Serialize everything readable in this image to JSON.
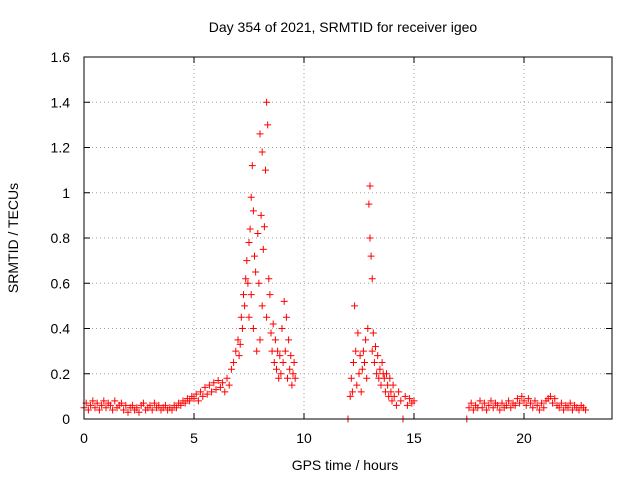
{
  "chart_data": {
    "type": "scatter",
    "title": "Day 354 of 2021, SRMTID for receiver igeo",
    "xlabel": "GPS time / hours",
    "ylabel": "SRMTID / TECUs",
    "xlim": [
      0,
      24
    ],
    "ylim": [
      0,
      1.6
    ],
    "x_ticks": [
      0,
      5,
      10,
      15,
      20
    ],
    "x_tick_labels": [
      "0",
      "5",
      "10",
      "15",
      "20"
    ],
    "y_ticks": [
      0,
      0.2,
      0.4,
      0.6,
      0.8,
      1.0,
      1.2,
      1.4,
      1.6
    ],
    "y_tick_labels": [
      "0",
      "0.2",
      "0.4",
      "0.6",
      "0.8",
      "1",
      "1.2",
      "1.4",
      "1.6"
    ],
    "grid": true,
    "marker": "plus",
    "series": [
      {
        "name": "SRMTID",
        "color": "#ff0000",
        "points": [
          [
            0.0,
            0.05
          ],
          [
            0.1,
            0.07
          ],
          [
            0.2,
            0.04
          ],
          [
            0.3,
            0.06
          ],
          [
            0.4,
            0.08
          ],
          [
            0.5,
            0.05
          ],
          [
            0.6,
            0.07
          ],
          [
            0.7,
            0.04
          ],
          [
            0.8,
            0.06
          ],
          [
            0.9,
            0.08
          ],
          [
            1.0,
            0.05
          ],
          [
            1.1,
            0.07
          ],
          [
            1.2,
            0.06
          ],
          [
            1.3,
            0.04
          ],
          [
            1.4,
            0.08
          ],
          [
            1.5,
            0.05
          ],
          [
            1.6,
            0.06
          ],
          [
            1.7,
            0.07
          ],
          [
            1.8,
            0.04
          ],
          [
            1.9,
            0.06
          ],
          [
            2.0,
            0.03
          ],
          [
            2.1,
            0.05
          ],
          [
            2.2,
            0.06
          ],
          [
            2.3,
            0.04
          ],
          [
            2.4,
            0.05
          ],
          [
            2.5,
            0.03
          ],
          [
            2.6,
            0.06
          ],
          [
            2.7,
            0.07
          ],
          [
            2.8,
            0.04
          ],
          [
            2.9,
            0.05
          ],
          [
            3.0,
            0.06
          ],
          [
            3.1,
            0.04
          ],
          [
            3.2,
            0.07
          ],
          [
            3.3,
            0.05
          ],
          [
            3.4,
            0.06
          ],
          [
            3.5,
            0.04
          ],
          [
            3.6,
            0.05
          ],
          [
            3.7,
            0.06
          ],
          [
            3.8,
            0.04
          ],
          [
            3.9,
            0.05
          ],
          [
            4.0,
            0.04
          ],
          [
            4.1,
            0.06
          ],
          [
            4.2,
            0.05
          ],
          [
            4.3,
            0.07
          ],
          [
            4.4,
            0.06
          ],
          [
            4.5,
            0.08
          ],
          [
            4.6,
            0.07
          ],
          [
            4.7,
            0.09
          ],
          [
            4.8,
            0.08
          ],
          [
            4.9,
            0.1
          ],
          [
            5.0,
            0.09
          ],
          [
            5.1,
            0.11
          ],
          [
            5.2,
            0.08
          ],
          [
            5.3,
            0.12
          ],
          [
            5.4,
            0.1
          ],
          [
            5.5,
            0.14
          ],
          [
            5.6,
            0.11
          ],
          [
            5.7,
            0.15
          ],
          [
            5.8,
            0.12
          ],
          [
            5.9,
            0.16
          ],
          [
            6.0,
            0.13
          ],
          [
            6.1,
            0.17
          ],
          [
            6.2,
            0.14
          ],
          [
            6.3,
            0.16
          ],
          [
            6.4,
            0.12
          ],
          [
            6.5,
            0.18
          ],
          [
            6.6,
            0.15
          ],
          [
            6.7,
            0.22
          ],
          [
            6.8,
            0.25
          ],
          [
            6.9,
            0.3
          ],
          [
            7.0,
            0.35
          ],
          [
            7.05,
            0.28
          ],
          [
            7.1,
            0.33
          ],
          [
            7.15,
            0.45
          ],
          [
            7.2,
            0.4
          ],
          [
            7.25,
            0.55
          ],
          [
            7.3,
            0.5
          ],
          [
            7.35,
            0.62
          ],
          [
            7.4,
            0.7
          ],
          [
            7.45,
            0.6
          ],
          [
            7.5,
            0.78
          ],
          [
            7.5,
            0.45
          ],
          [
            7.55,
            0.84
          ],
          [
            7.6,
            0.98
          ],
          [
            7.6,
            0.55
          ],
          [
            7.65,
            1.12
          ],
          [
            7.7,
            0.92
          ],
          [
            7.7,
            0.4
          ],
          [
            7.75,
            0.72
          ],
          [
            7.8,
            0.65
          ],
          [
            7.85,
            0.3
          ],
          [
            7.9,
            0.82
          ],
          [
            7.95,
            0.6
          ],
          [
            8.0,
            1.26
          ],
          [
            8.0,
            0.35
          ],
          [
            8.05,
            0.9
          ],
          [
            8.1,
            1.18
          ],
          [
            8.1,
            0.5
          ],
          [
            8.15,
            0.75
          ],
          [
            8.2,
            0.85
          ],
          [
            8.25,
            1.1
          ],
          [
            8.3,
            1.4
          ],
          [
            8.3,
            0.45
          ],
          [
            8.35,
            1.3
          ],
          [
            8.4,
            0.62
          ],
          [
            8.45,
            0.55
          ],
          [
            8.5,
            0.38
          ],
          [
            8.55,
            0.3
          ],
          [
            8.6,
            0.42
          ],
          [
            8.65,
            0.25
          ],
          [
            8.7,
            0.35
          ],
          [
            8.75,
            0.22
          ],
          [
            8.8,
            0.3
          ],
          [
            8.85,
            0.18
          ],
          [
            8.9,
            0.28
          ],
          [
            8.95,
            0.2
          ],
          [
            9.0,
            0.4
          ],
          [
            9.05,
            0.25
          ],
          [
            9.1,
            0.52
          ],
          [
            9.15,
            0.3
          ],
          [
            9.2,
            0.45
          ],
          [
            9.25,
            0.18
          ],
          [
            9.3,
            0.35
          ],
          [
            9.35,
            0.22
          ],
          [
            9.4,
            0.28
          ],
          [
            9.45,
            0.15
          ],
          [
            9.5,
            0.2
          ],
          [
            9.55,
            0.25
          ],
          [
            9.6,
            0.18
          ],
          [
            12.0,
            0.0
          ],
          [
            12.1,
            0.1
          ],
          [
            12.15,
            0.18
          ],
          [
            12.2,
            0.12
          ],
          [
            12.25,
            0.25
          ],
          [
            12.3,
            0.5
          ],
          [
            12.35,
            0.3
          ],
          [
            12.4,
            0.15
          ],
          [
            12.45,
            0.38
          ],
          [
            12.5,
            0.2
          ],
          [
            12.55,
            0.28
          ],
          [
            12.6,
            0.12
          ],
          [
            12.65,
            0.22
          ],
          [
            12.7,
            0.3
          ],
          [
            12.75,
            0.25
          ],
          [
            12.8,
            0.35
          ],
          [
            12.85,
            0.18
          ],
          [
            12.9,
            0.4
          ],
          [
            12.95,
            0.95
          ],
          [
            13.0,
            1.03
          ],
          [
            13.0,
            0.8
          ],
          [
            13.05,
            0.72
          ],
          [
            13.1,
            0.62
          ],
          [
            13.1,
            0.3
          ],
          [
            13.15,
            0.38
          ],
          [
            13.2,
            0.25
          ],
          [
            13.25,
            0.32
          ],
          [
            13.3,
            0.2
          ],
          [
            13.35,
            0.28
          ],
          [
            13.4,
            0.18
          ],
          [
            13.45,
            0.22
          ],
          [
            13.5,
            0.15
          ],
          [
            13.55,
            0.25
          ],
          [
            13.6,
            0.2
          ],
          [
            13.65,
            0.18
          ],
          [
            13.7,
            0.12
          ],
          [
            13.75,
            0.2
          ],
          [
            13.8,
            0.15
          ],
          [
            13.85,
            0.1
          ],
          [
            13.9,
            0.18
          ],
          [
            13.95,
            0.12
          ],
          [
            14.0,
            0.08
          ],
          [
            14.05,
            0.15
          ],
          [
            14.1,
            0.1
          ],
          [
            14.2,
            0.06
          ],
          [
            14.3,
            0.12
          ],
          [
            14.4,
            0.08
          ],
          [
            14.5,
            0.0
          ],
          [
            14.6,
            0.1
          ],
          [
            14.7,
            0.06
          ],
          [
            14.8,
            0.09
          ],
          [
            14.9,
            0.07
          ],
          [
            15.0,
            0.08
          ],
          [
            17.4,
            0.0
          ],
          [
            17.5,
            0.05
          ],
          [
            17.6,
            0.07
          ],
          [
            17.7,
            0.04
          ],
          [
            17.8,
            0.06
          ],
          [
            17.9,
            0.05
          ],
          [
            18.0,
            0.08
          ],
          [
            18.1,
            0.05
          ],
          [
            18.2,
            0.07
          ],
          [
            18.3,
            0.04
          ],
          [
            18.4,
            0.06
          ],
          [
            18.5,
            0.08
          ],
          [
            18.6,
            0.05
          ],
          [
            18.7,
            0.07
          ],
          [
            18.8,
            0.06
          ],
          [
            18.9,
            0.04
          ],
          [
            19.0,
            0.07
          ],
          [
            19.1,
            0.05
          ],
          [
            19.2,
            0.06
          ],
          [
            19.3,
            0.08
          ],
          [
            19.4,
            0.05
          ],
          [
            19.5,
            0.07
          ],
          [
            19.6,
            0.06
          ],
          [
            19.7,
            0.09
          ],
          [
            19.8,
            0.07
          ],
          [
            19.9,
            0.1
          ],
          [
            20.0,
            0.08
          ],
          [
            20.1,
            0.06
          ],
          [
            20.2,
            0.09
          ],
          [
            20.3,
            0.07
          ],
          [
            20.4,
            0.05
          ],
          [
            20.5,
            0.08
          ],
          [
            20.6,
            0.06
          ],
          [
            20.7,
            0.04
          ],
          [
            20.8,
            0.07
          ],
          [
            20.9,
            0.05
          ],
          [
            21.0,
            0.08
          ],
          [
            21.1,
            0.09
          ],
          [
            21.2,
            0.1
          ],
          [
            21.3,
            0.07
          ],
          [
            21.4,
            0.09
          ],
          [
            21.5,
            0.06
          ],
          [
            21.6,
            0.05
          ],
          [
            21.7,
            0.07
          ],
          [
            21.8,
            0.04
          ],
          [
            21.9,
            0.06
          ],
          [
            22.0,
            0.05
          ],
          [
            22.1,
            0.07
          ],
          [
            22.2,
            0.04
          ],
          [
            22.3,
            0.06
          ],
          [
            22.4,
            0.05
          ],
          [
            22.5,
            0.04
          ],
          [
            22.6,
            0.06
          ],
          [
            22.7,
            0.05
          ],
          [
            22.8,
            0.04
          ]
        ]
      }
    ]
  }
}
